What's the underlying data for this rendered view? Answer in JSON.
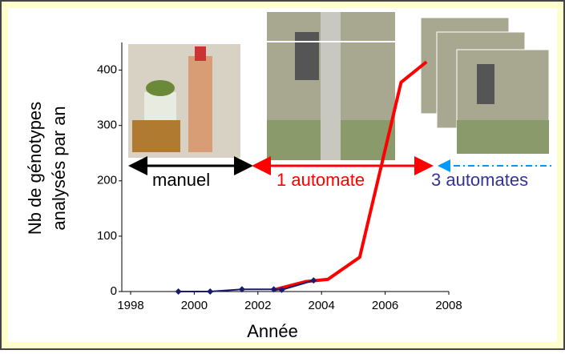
{
  "chart_data": {
    "type": "line",
    "ylabel": [
      "Nb de génotypes",
      "analysés par an"
    ],
    "xlabel": "Année",
    "xlim": [
      1998,
      2008
    ],
    "xticks": [
      1998,
      2000,
      2002,
      2004,
      2006,
      2008
    ],
    "ylim": [
      0,
      450
    ],
    "yticks": [
      0,
      100,
      200,
      300,
      400
    ],
    "series": [
      {
        "color": "#ff0000",
        "width": 4,
        "x": [
          2002.5,
          2003.5,
          2004.2,
          2005.2,
          2006.5,
          2007.3
        ],
        "values": [
          3,
          18,
          22,
          62,
          378,
          415
        ]
      },
      {
        "color": "#1a1a6e",
        "width": 2,
        "marker": "diamond",
        "x": [
          1999.5,
          2000.5,
          2001.5,
          2002.5,
          2002.75,
          2003.75
        ],
        "values": [
          0,
          0,
          4,
          4,
          3,
          20
        ]
      }
    ],
    "annotations": [
      {
        "text": "manuel",
        "color": "#000000"
      },
      {
        "text": "1 automate",
        "color": "#ff0000"
      },
      {
        "text": "3 automates",
        "color": "#333399"
      }
    ]
  }
}
